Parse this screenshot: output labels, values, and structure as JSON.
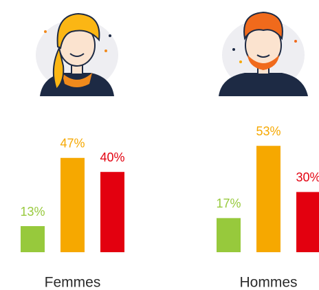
{
  "chart_data": [
    {
      "type": "bar",
      "title": "Femmes",
      "values": [
        13,
        47,
        40
      ],
      "value_labels": [
        "13%",
        "47%",
        "40%"
      ],
      "colors": [
        "#97c93c",
        "#f6a800",
        "#e3000f"
      ]
    },
    {
      "type": "bar",
      "title": "Hommes",
      "values": [
        17,
        53,
        30
      ],
      "value_labels": [
        "17%",
        "53%",
        "30%"
      ],
      "colors": [
        "#97c93c",
        "#f6a800",
        "#e3000f"
      ]
    }
  ]
}
